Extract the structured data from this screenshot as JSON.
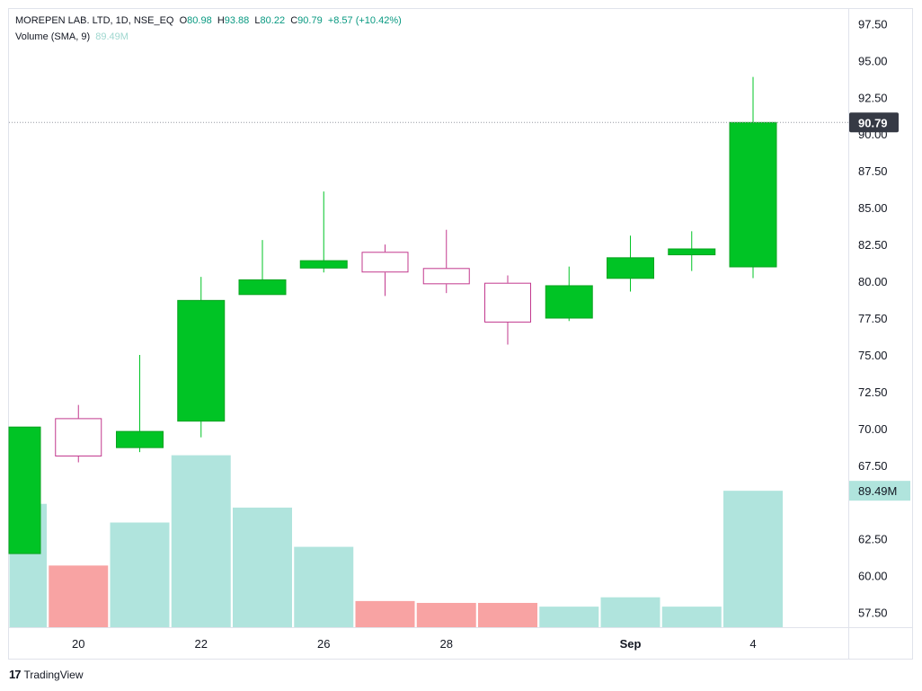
{
  "legend": {
    "symbol": "MOREPEN LAB. LTD, 1D, NSE_EQ",
    "open_label": "O",
    "open": "80.98",
    "high_label": "H",
    "high": "93.88",
    "low_label": "L",
    "low": "80.22",
    "close_label": "C",
    "close": "90.79",
    "change": "+8.57 (+10.42%)",
    "volume_label": "Volume (SMA, 9)",
    "volume_value": "89.49M"
  },
  "brand": {
    "logo": "17",
    "name": "TradingView"
  },
  "colors": {
    "up": "#00c425",
    "down_border": "#c2398e",
    "volume_up": "#b0e4dd",
    "volume_down": "#f8a3a3",
    "price_badge": "#363a45",
    "volume_badge": "#b0e4dd"
  },
  "chart_data": {
    "type": "candlestick",
    "price_axis": {
      "ylim": [
        56.5,
        98.5
      ],
      "ticks": [
        "97.50",
        "95.00",
        "92.50",
        "90.00",
        "87.50",
        "85.00",
        "82.50",
        "80.00",
        "77.50",
        "75.00",
        "72.50",
        "70.00",
        "67.50",
        "62.50",
        "60.00",
        "57.50"
      ]
    },
    "x_labels": [
      {
        "index": 1,
        "label": "20",
        "bold": false
      },
      {
        "index": 3,
        "label": "22",
        "bold": false
      },
      {
        "index": 5,
        "label": "26",
        "bold": false
      },
      {
        "index": 7,
        "label": "28",
        "bold": false
      },
      {
        "index": 10,
        "label": "Sep",
        "bold": true
      },
      {
        "index": 12,
        "label": "4",
        "bold": false
      }
    ],
    "candles": [
      {
        "open": 61.5,
        "high": 70.1,
        "low": 61.5,
        "close": 70.1
      },
      {
        "open": 70.7,
        "high": 71.6,
        "low": 67.7,
        "close": 68.1
      },
      {
        "open": 68.7,
        "high": 75.0,
        "low": 68.4,
        "close": 69.8
      },
      {
        "open": 70.5,
        "high": 80.3,
        "low": 69.4,
        "close": 78.7
      },
      {
        "open": 79.1,
        "high": 82.8,
        "low": 79.1,
        "close": 80.1
      },
      {
        "open": 80.9,
        "high": 86.1,
        "low": 80.6,
        "close": 81.4
      },
      {
        "open": 82.0,
        "high": 82.5,
        "low": 79.0,
        "close": 80.6
      },
      {
        "open": 80.9,
        "high": 83.5,
        "low": 79.2,
        "close": 79.8
      },
      {
        "open": 79.9,
        "high": 80.4,
        "low": 75.7,
        "close": 77.2
      },
      {
        "open": 77.5,
        "high": 81.0,
        "low": 77.3,
        "close": 79.7
      },
      {
        "open": 80.2,
        "high": 83.1,
        "low": 79.3,
        "close": 81.6
      },
      {
        "open": 81.8,
        "high": 83.4,
        "low": 80.7,
        "close": 82.2
      },
      {
        "open": 80.98,
        "high": 93.88,
        "low": 80.22,
        "close": 90.79
      }
    ],
    "volume_ylim": [
      0,
      1
    ],
    "volume": [
      {
        "value": 0.66,
        "up": true
      },
      {
        "value": 0.33,
        "up": false
      },
      {
        "value": 0.56,
        "up": true
      },
      {
        "value": 0.92,
        "up": true
      },
      {
        "value": 0.64,
        "up": true
      },
      {
        "value": 0.43,
        "up": true
      },
      {
        "value": 0.14,
        "up": false
      },
      {
        "value": 0.13,
        "up": false
      },
      {
        "value": 0.13,
        "up": false
      },
      {
        "value": 0.11,
        "up": true
      },
      {
        "value": 0.16,
        "up": true
      },
      {
        "value": 0.11,
        "up": true
      },
      {
        "value": 0.73,
        "up": true
      }
    ],
    "last_price": "90.79",
    "last_price_value": 90.79,
    "volume_sma_label": "89.49M"
  }
}
